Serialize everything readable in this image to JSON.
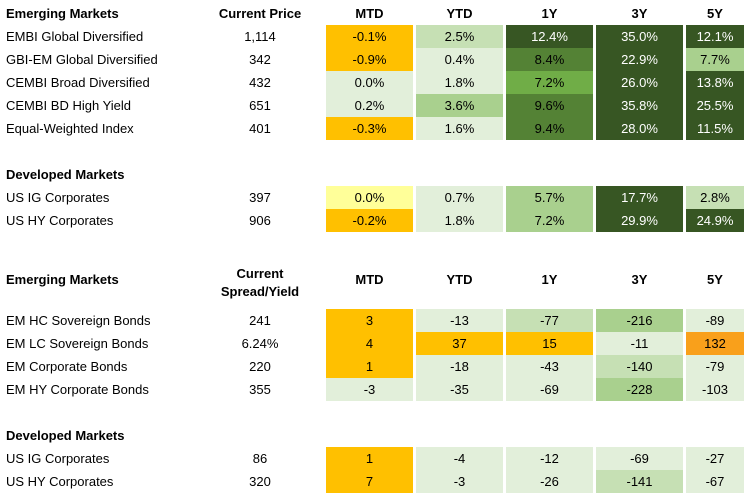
{
  "colors": {
    "orange": "#ffc000",
    "dark_orange": "#f9a01b",
    "yellow": "#ffff99",
    "very_light_green": "#e2efda",
    "light_green": "#c6e0b4",
    "mid_green": "#a9d08e",
    "dark_green": "#375623",
    "text_light": "#ffffff",
    "text_dark": "#000000"
  },
  "table1": {
    "headers": {
      "title": "Emerging Markets",
      "price": "Current Price",
      "mtd": "MTD",
      "ytd": "YTD",
      "y1": "1Y",
      "y3": "3Y",
      "y5": "5Y"
    },
    "em_rows": [
      {
        "name": "EMBI Global Diversified",
        "price": "1,114",
        "mtd": "-0.1%",
        "ytd": "2.5%",
        "y1": "12.4%",
        "y3": "35.0%",
        "y5": "12.1%"
      },
      {
        "name": "GBI-EM Global Diversified",
        "price": "342",
        "mtd": "-0.9%",
        "ytd": "0.4%",
        "y1": "8.4%",
        "y3": "22.9%",
        "y5": "7.7%"
      },
      {
        "name": "CEMBI Broad Diversified",
        "price": "432",
        "mtd": "0.0%",
        "ytd": "1.8%",
        "y1": "7.2%",
        "y3": "26.0%",
        "y5": "13.8%"
      },
      {
        "name": "CEMBI BD High Yield",
        "price": "651",
        "mtd": "0.2%",
        "ytd": "3.6%",
        "y1": "9.6%",
        "y3": "35.8%",
        "y5": "25.5%"
      },
      {
        "name": "Equal-Weighted Index",
        "price": "401",
        "mtd": "-0.3%",
        "ytd": "1.6%",
        "y1": "9.4%",
        "y3": "28.0%",
        "y5": "11.5%"
      }
    ],
    "dm_title": "Developed Markets",
    "dm_rows": [
      {
        "name": "US IG Corporates",
        "price": "397",
        "mtd": "0.0%",
        "ytd": "0.7%",
        "y1": "5.7%",
        "y3": "17.7%",
        "y5": "2.8%"
      },
      {
        "name": "US HY Corporates",
        "price": "906",
        "mtd": "-0.2%",
        "ytd": "1.8%",
        "y1": "7.2%",
        "y3": "29.9%",
        "y5": "24.9%"
      }
    ]
  },
  "table2": {
    "headers": {
      "title": "Emerging Markets",
      "spread_line1": "Current",
      "spread_line2": "Spread/Yield",
      "mtd": "MTD",
      "ytd": "YTD",
      "y1": "1Y",
      "y3": "3Y",
      "y5": "5Y"
    },
    "em_rows": [
      {
        "name": "EM HC Sovereign Bonds",
        "price": "241",
        "mtd": "3",
        "ytd": "-13",
        "y1": "-77",
        "y3": "-216",
        "y5": "-89"
      },
      {
        "name": "EM LC Sovereign Bonds",
        "price": "6.24%",
        "mtd": "4",
        "ytd": "37",
        "y1": "15",
        "y3": "-11",
        "y5": "132"
      },
      {
        "name": "EM Corporate Bonds",
        "price": "220",
        "mtd": "1",
        "ytd": "-18",
        "y1": "-43",
        "y3": "-140",
        "y5": "-79"
      },
      {
        "name": "EM HY Corporate Bonds",
        "price": "355",
        "mtd": "-3",
        "ytd": "-35",
        "y1": "-69",
        "y3": "-228",
        "y5": "-103"
      }
    ],
    "dm_title": "Developed Markets",
    "dm_rows": [
      {
        "name": "US IG Corporates",
        "price": "86",
        "mtd": "1",
        "ytd": "-4",
        "y1": "-12",
        "y3": "-69",
        "y5": "-27"
      },
      {
        "name": "US HY Corporates",
        "price": "320",
        "mtd": "7",
        "ytd": "-3",
        "y1": "-26",
        "y3": "-141",
        "y5": "-67"
      }
    ]
  }
}
